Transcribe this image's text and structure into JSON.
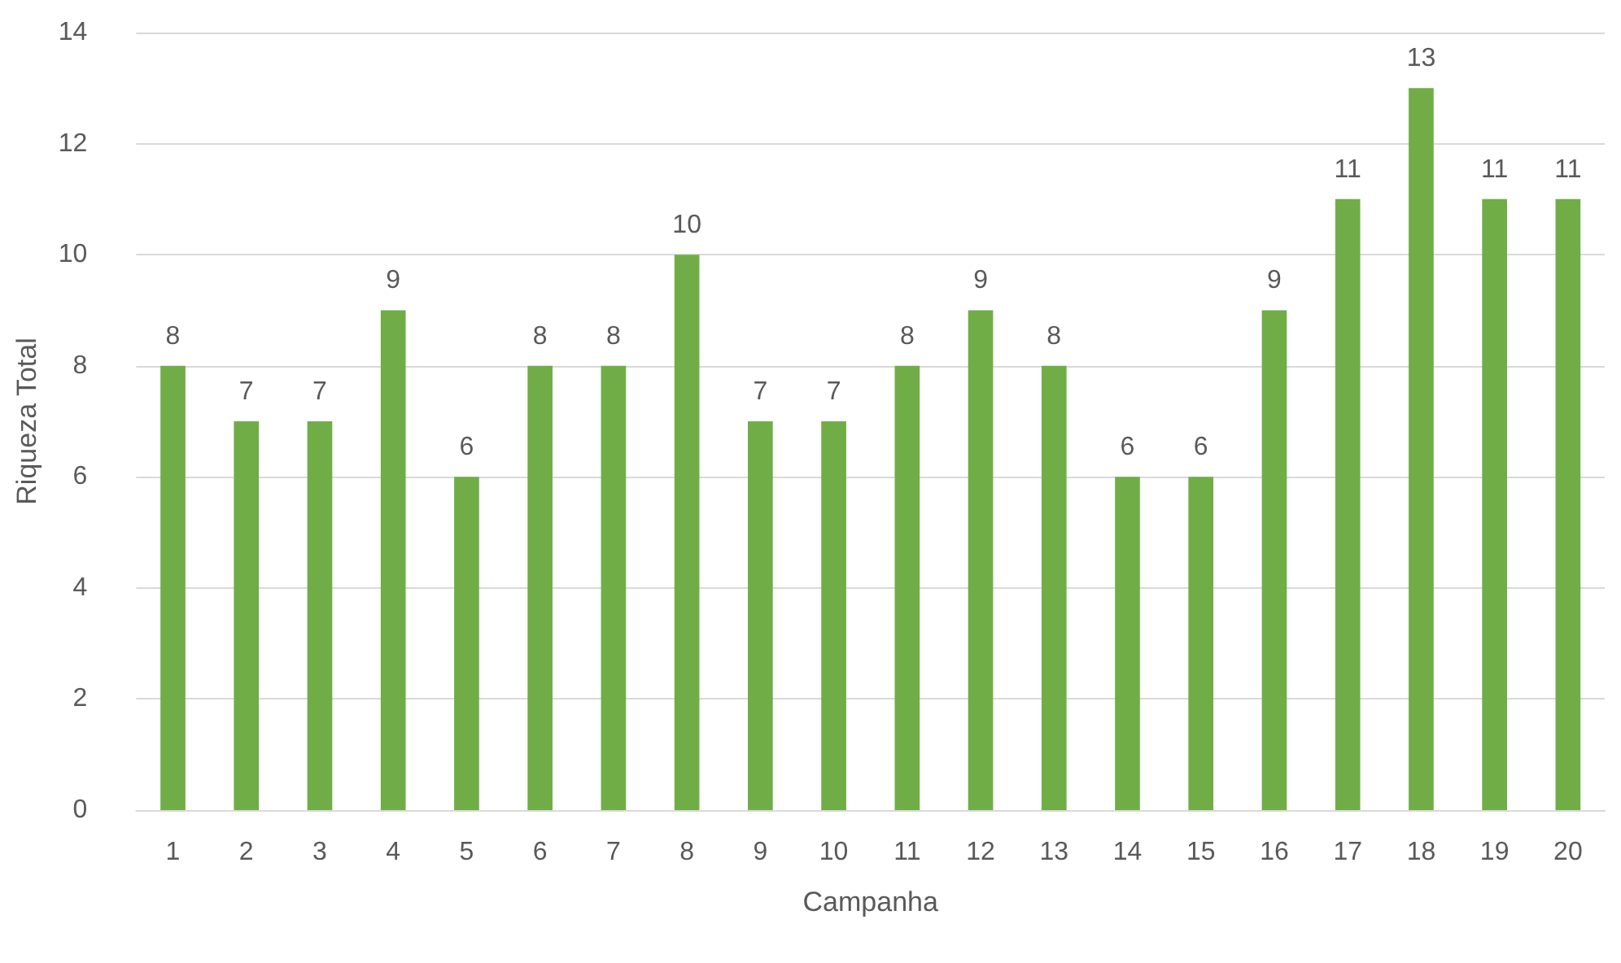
{
  "chart_data": {
    "type": "bar",
    "xlabel": "Campanha",
    "ylabel": "Riqueza Total",
    "categories": [
      "1",
      "2",
      "3",
      "4",
      "5",
      "6",
      "7",
      "8",
      "9",
      "10",
      "11",
      "12",
      "13",
      "14",
      "15",
      "16",
      "17",
      "18",
      "19",
      "20"
    ],
    "values": [
      8,
      7,
      7,
      9,
      6,
      8,
      8,
      10,
      7,
      7,
      8,
      9,
      8,
      6,
      6,
      9,
      11,
      13,
      11,
      11
    ],
    "color": "#70ad47",
    "ylim": [
      0,
      14
    ],
    "yticks": [
      0,
      2,
      4,
      6,
      8,
      10,
      12,
      14
    ],
    "grid": "y",
    "data_labels": true
  }
}
